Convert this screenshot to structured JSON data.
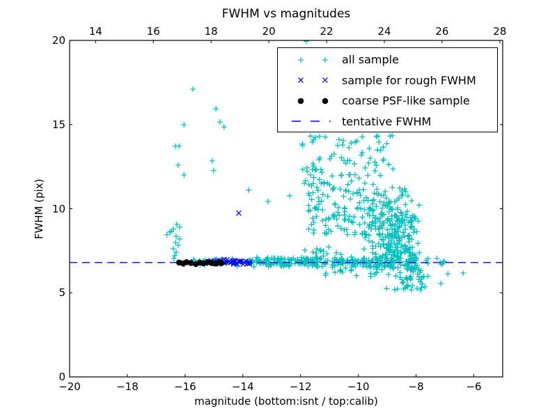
{
  "title": "FWHM vs magnitudes",
  "axes": {
    "xlabel": "magnitude (bottom:isnt / top:calib)",
    "ylabel": "FWHM (pix)",
    "bottom_ticks": [
      {
        "v": -20,
        "label": "−20"
      },
      {
        "v": -18,
        "label": "−18"
      },
      {
        "v": -16,
        "label": "−16"
      },
      {
        "v": -14,
        "label": "−14"
      },
      {
        "v": -12,
        "label": "−12"
      },
      {
        "v": -10,
        "label": "−10"
      },
      {
        "v": -8,
        "label": "−8"
      },
      {
        "v": -6,
        "label": "−6"
      }
    ],
    "top_ticks": [
      {
        "v": 14,
        "label": "14"
      },
      {
        "v": 16,
        "label": "16"
      },
      {
        "v": 18,
        "label": "18"
      },
      {
        "v": 20,
        "label": "20"
      },
      {
        "v": 22,
        "label": "22"
      },
      {
        "v": 24,
        "label": "24"
      },
      {
        "v": 26,
        "label": "26"
      },
      {
        "v": 28,
        "label": "28"
      }
    ],
    "y_ticks": [
      {
        "v": 0,
        "label": "0"
      },
      {
        "v": 5,
        "label": "5"
      },
      {
        "v": 10,
        "label": "10"
      },
      {
        "v": 15,
        "label": "15"
      },
      {
        "v": 20,
        "label": "20"
      }
    ]
  },
  "chart_data": {
    "type": "scatter",
    "title": "FWHM vs magnitudes",
    "xlabel": "magnitude (bottom:isnt / top:calib)",
    "ylabel": "FWHM (pix)",
    "xlim_bottom": [
      -20,
      -5
    ],
    "xlim_top": [
      13.1,
      28.1
    ],
    "ylim": [
      0,
      20
    ],
    "grid": false,
    "legend_position": "upper center-right",
    "tentative_fwhm": 6.8,
    "seed": 20,
    "series": [
      {
        "name": "all sample",
        "marker": "plus",
        "color": "#00bfbf",
        "points": [
          [
            -16.33,
            13.71
          ],
          [
            -16.21,
            13.71
          ],
          [
            -16.24,
            12.59
          ],
          [
            -16.04,
            14.99
          ],
          [
            -16.04,
            12.01
          ],
          [
            -15.73,
            17.1
          ],
          [
            -15.06,
            12.84
          ],
          [
            -15.01,
            12.26
          ],
          [
            -14.93,
            15.94
          ],
          [
            -14.79,
            15.15
          ],
          [
            -14.65,
            14.86
          ],
          [
            -16.29,
            9.07
          ],
          [
            -16.19,
            8.9
          ],
          [
            -16.41,
            8.78
          ],
          [
            -16.53,
            8.61
          ],
          [
            -16.63,
            8.45
          ],
          [
            -16.48,
            8.65
          ],
          [
            -16.31,
            8.36
          ],
          [
            -16.19,
            8.2
          ],
          [
            -16.33,
            7.99
          ],
          [
            -16.24,
            7.83
          ],
          [
            -16.41,
            7.62
          ],
          [
            -16.31,
            7.41
          ],
          [
            -16.36,
            7.21
          ],
          [
            -16.39,
            7.04
          ],
          [
            -13.8,
            11.1
          ],
          [
            -13.13,
            10.43
          ],
          [
            -12.38,
            10.77
          ],
          [
            -11.87,
            11.51
          ],
          [
            -11.8,
            19.95
          ],
          [
            -7.05,
            6.83
          ],
          [
            -6.9,
            6.13
          ],
          [
            -6.37,
            6.17
          ],
          [
            -7.14,
            5.55
          ]
        ]
      },
      {
        "name": "sample for rough FWHM",
        "marker": "x",
        "color": "#0000ff",
        "points": [
          [
            -14.14,
            9.73
          ]
        ]
      },
      {
        "name": "coarse PSF-like sample",
        "marker": "dot",
        "color": "#000000",
        "points": [
          [
            -16.21,
            6.8
          ],
          [
            -16.07,
            6.74
          ],
          [
            -15.95,
            6.82
          ],
          [
            -15.8,
            6.77
          ],
          [
            -15.63,
            6.71
          ],
          [
            -15.49,
            6.8
          ],
          [
            -15.37,
            6.75
          ],
          [
            -15.22,
            6.82
          ],
          [
            -15.08,
            6.77
          ],
          [
            -14.93,
            6.74
          ],
          [
            -14.81,
            6.8
          ],
          [
            -14.74,
            6.76
          ]
        ]
      },
      {
        "name": "tentative FWHM",
        "marker": "dashed-line",
        "color": "#0000ff",
        "y": 6.8
      }
    ],
    "clusters": [
      {
        "series": "all",
        "n": 40,
        "x": [
          "u",
          -16.05,
          -13.65
        ],
        "y": [
          "n",
          6.82,
          0.1,
          6.5,
          7.15
        ]
      },
      {
        "series": "all",
        "n": 110,
        "x": [
          "u",
          -13.7,
          -11.55
        ],
        "y": [
          "n",
          6.83,
          0.13,
          6.3,
          7.5
        ]
      },
      {
        "series": "all",
        "n": 10,
        "x": [
          "u",
          -11.9,
          -11.0
        ],
        "y": [
          "u",
          7.0,
          7.8
        ]
      },
      {
        "series": "all",
        "n": 85,
        "x": [
          "u",
          -11.95,
          -8.75
        ],
        "y": [
          "u",
          11.3,
          14.35
        ]
      },
      {
        "series": "all",
        "n": 150,
        "x": [
          "u",
          -11.75,
          -8.35
        ],
        "y": [
          "u",
          8.4,
          11.3
        ]
      },
      {
        "series": "all",
        "n": 230,
        "x": [
          "n",
          -8.75,
          0.5,
          -9.9,
          -7.85
        ],
        "y": [
          "n",
          8.3,
          1.35,
          5.9,
          11.6
        ]
      },
      {
        "series": "all",
        "n": 150,
        "x": [
          "u",
          -11.6,
          -7.95
        ],
        "y": [
          "n",
          6.85,
          0.2,
          6.2,
          7.6
        ]
      },
      {
        "series": "all",
        "n": 40,
        "x": [
          "n",
          -8.25,
          0.45,
          -9.3,
          -7.55
        ],
        "y": [
          "u",
          5.15,
          6.5
        ]
      },
      {
        "series": "all",
        "n": 15,
        "x": [
          "u",
          -11.4,
          -9.3
        ],
        "y": [
          "u",
          5.9,
          6.6
        ]
      },
      {
        "series": "all",
        "n": 8,
        "x": [
          "u",
          -7.9,
          -7.0
        ],
        "y": [
          "n",
          6.8,
          0.15,
          6.5,
          7.1
        ]
      },
      {
        "series": "rough",
        "n": 42,
        "x": [
          "u",
          -15.35,
          -13.75
        ],
        "y": [
          "n",
          6.8,
          0.08,
          6.6,
          7.05
        ]
      }
    ]
  },
  "legend": {
    "items": [
      {
        "label": "all sample"
      },
      {
        "label": "sample for rough FWHM"
      },
      {
        "label": "coarse PSF-like sample"
      },
      {
        "label": "tentative FWHM"
      }
    ]
  }
}
